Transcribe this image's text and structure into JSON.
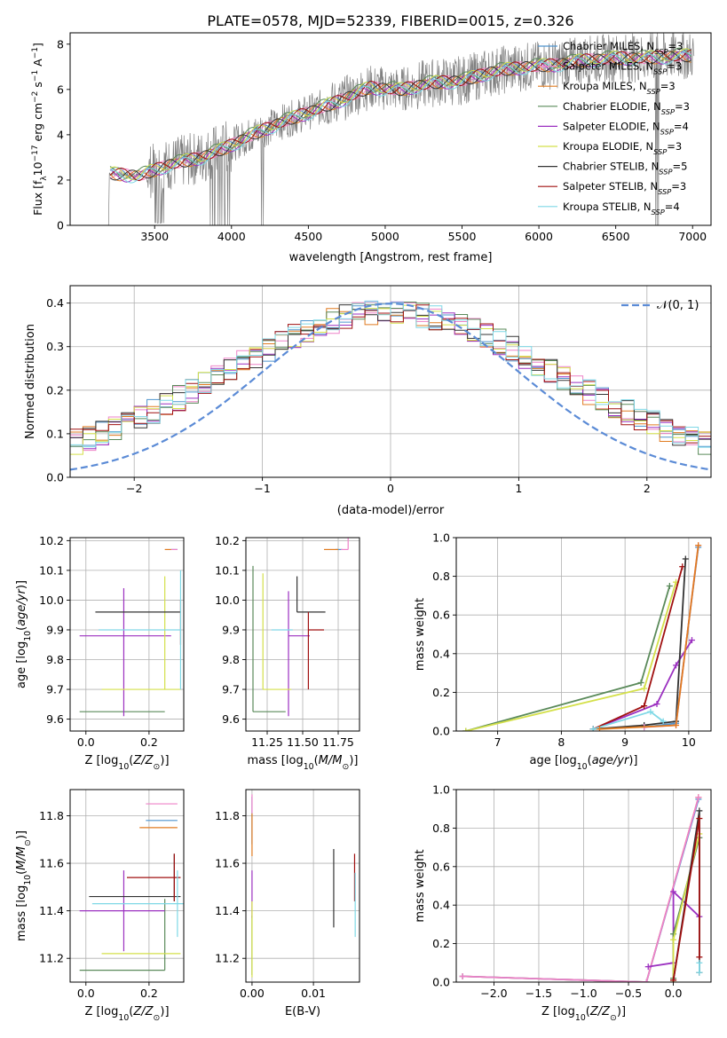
{
  "title": "PLATE=0578, MJD=52339, FIBERID=0015, z=0.326",
  "colors": {
    "data": "#808080",
    "chabrier_miles": "#4f94cd",
    "salpeter_miles": "#ee82c8",
    "kroupa_miles": "#e07b20",
    "chabrier_elodie": "#5a8a5a",
    "salpeter_elodie": "#9b30c0",
    "kroupa_elodie": "#d4e04a",
    "chabrier_stelib": "#333333",
    "salpeter_stelib": "#a01010",
    "kroupa_stelib": "#7fd8e6",
    "normal": "#5b8bd6"
  },
  "legend": [
    {
      "key": "chabrier_miles",
      "label": "Chabrier MILES, N",
      "sub": "SSP",
      "tail": "=3"
    },
    {
      "key": "salpeter_miles",
      "label": "Salpeter MILES, N",
      "sub": "SSP",
      "tail": "=3"
    },
    {
      "key": "kroupa_miles",
      "label": "Kroupa MILES, N",
      "sub": "SSP",
      "tail": "=3"
    },
    {
      "key": "chabrier_elodie",
      "label": "Chabrier ELODIE, N",
      "sub": "SSP",
      "tail": "=3"
    },
    {
      "key": "salpeter_elodie",
      "label": "Salpeter ELODIE, N",
      "sub": "SSP",
      "tail": "=4"
    },
    {
      "key": "kroupa_elodie",
      "label": "Kroupa ELODIE, N",
      "sub": "SSP",
      "tail": "=3"
    },
    {
      "key": "chabrier_stelib",
      "label": "Chabrier STELIB, N",
      "sub": "SSP",
      "tail": "=5"
    },
    {
      "key": "salpeter_stelib",
      "label": "Salpeter STELIB, N",
      "sub": "SSP",
      "tail": "=3"
    },
    {
      "key": "kroupa_stelib",
      "label": "Kroupa STELIB, N",
      "sub": "SSP",
      "tail": "=4"
    }
  ],
  "chart_data": [
    {
      "id": "spectrum",
      "type": "line",
      "xlabel": "wavelength [Angstrom, rest frame]",
      "ylabel": "Flux [f",
      "xlim": [
        2950,
        7120
      ],
      "ylim": [
        0,
        8.5
      ],
      "xticks": [
        3500,
        4000,
        4500,
        5000,
        5500,
        6000,
        6500,
        7000
      ],
      "yticks": [
        0,
        2,
        4,
        6,
        8
      ],
      "continuum": [
        [
          3200,
          2.3
        ],
        [
          3400,
          2.2
        ],
        [
          3600,
          2.7
        ],
        [
          3800,
          3.0
        ],
        [
          3950,
          3.4
        ],
        [
          4100,
          3.9
        ],
        [
          4300,
          4.5
        ],
        [
          4500,
          5.0
        ],
        [
          4700,
          5.5
        ],
        [
          4900,
          6.1
        ],
        [
          5100,
          6.0
        ],
        [
          5300,
          6.3
        ],
        [
          5500,
          6.4
        ],
        [
          5700,
          6.8
        ],
        [
          5900,
          7.0
        ],
        [
          6100,
          7.1
        ],
        [
          6300,
          7.3
        ],
        [
          6500,
          7.4
        ],
        [
          6700,
          7.4
        ],
        [
          6900,
          7.5
        ],
        [
          7000,
          7.5
        ]
      ]
    },
    {
      "id": "residuals",
      "type": "histogram",
      "xlabel": "(data-model)/error",
      "ylabel": "Normed distribution",
      "xlim": [
        -2.5,
        2.5
      ],
      "ylim": [
        0,
        0.44
      ],
      "xticks": [
        -2,
        -1,
        0,
        1,
        2
      ],
      "yticks": [
        0.0,
        0.1,
        0.2,
        0.3,
        0.4
      ],
      "normal_label": "𝒩(0, 1)",
      "bin_width": 0.1
    },
    {
      "id": "age_vs_Z",
      "type": "errorbar",
      "xlabel": "Z [log",
      "ylabel": "age  [log",
      "xlim": [
        -0.05,
        0.31
      ],
      "ylim": [
        9.56,
        10.21
      ],
      "xticks": [
        0.0,
        0.2
      ],
      "yticks": [
        9.6,
        9.7,
        9.8,
        9.9,
        10.0,
        10.1,
        10.2
      ],
      "points": [
        {
          "key": "chabrier_miles",
          "x": 0.29,
          "y": 10.17,
          "xerr": [
            0.02,
            0.0
          ],
          "yerr": [
            0.0,
            0.0
          ]
        },
        {
          "key": "salpeter_miles",
          "x": 0.29,
          "y": 10.17,
          "xerr": [
            0.02,
            0.0
          ],
          "yerr": [
            0.0,
            0.0
          ]
        },
        {
          "key": "kroupa_miles",
          "x": 0.27,
          "y": 10.17,
          "xerr": [
            0.02,
            0.0
          ],
          "yerr": [
            0.0,
            0.0
          ]
        },
        {
          "key": "chabrier_elodie",
          "x": 0.25,
          "y": 9.625,
          "xerr": [
            0.27,
            0.0
          ],
          "yerr": [
            0.0,
            0.0
          ]
        },
        {
          "key": "salpeter_elodie",
          "x": 0.12,
          "y": 9.88,
          "xerr": [
            0.14,
            0.15
          ],
          "yerr": [
            0.27,
            0.16
          ]
        },
        {
          "key": "kroupa_elodie",
          "x": 0.25,
          "y": 9.7,
          "xerr": [
            0.2,
            0.05
          ],
          "yerr": [
            0.0,
            0.38
          ]
        },
        {
          "key": "chabrier_stelib",
          "x": 0.28,
          "y": 9.96,
          "xerr": [
            0.25,
            0.02
          ],
          "yerr": [
            0.0,
            0.0
          ]
        },
        {
          "key": "salpeter_stelib",
          "x": 0.3,
          "y": 9.9,
          "xerr": [
            0.0,
            0.0
          ],
          "yerr": [
            0.05,
            0.1
          ]
        },
        {
          "key": "kroupa_stelib",
          "x": 0.3,
          "y": 9.9,
          "xerr": [
            0.26,
            0.0
          ],
          "yerr": [
            0.2,
            0.2
          ]
        }
      ]
    },
    {
      "id": "age_vs_mass",
      "type": "errorbar",
      "xlabel": "mass [log",
      "ylabel": "",
      "xlim": [
        11.1,
        11.9
      ],
      "ylim": [
        9.56,
        10.21
      ],
      "xticks": [
        11.25,
        11.5,
        11.75
      ],
      "yticks": [
        9.6,
        9.7,
        9.8,
        9.9,
        10.0,
        10.1,
        10.2
      ],
      "points": [
        {
          "key": "chabrier_miles",
          "x": 11.78,
          "y": 10.17,
          "xerr": [
            0.05,
            0.0
          ],
          "yerr": [
            0.0,
            0.0
          ]
        },
        {
          "key": "salpeter_miles",
          "x": 11.82,
          "y": 10.17,
          "xerr": [
            0.05,
            0.0
          ],
          "yerr": [
            0.0,
            0.05
          ]
        },
        {
          "key": "kroupa_miles",
          "x": 11.75,
          "y": 10.17,
          "xerr": [
            0.1,
            0.0
          ],
          "yerr": [
            0.0,
            0.0
          ]
        },
        {
          "key": "chabrier_elodie",
          "x": 11.15,
          "y": 9.625,
          "xerr": [
            0.0,
            0.23
          ],
          "yerr": [
            0.0,
            0.49
          ]
        },
        {
          "key": "salpeter_elodie",
          "x": 11.4,
          "y": 9.88,
          "xerr": [
            0.0,
            0.15
          ],
          "yerr": [
            0.27,
            0.15
          ]
        },
        {
          "key": "kroupa_elodie",
          "x": 11.22,
          "y": 9.7,
          "xerr": [
            0.0,
            0.2
          ],
          "yerr": [
            0.0,
            0.39
          ]
        },
        {
          "key": "chabrier_stelib",
          "x": 11.46,
          "y": 9.96,
          "xerr": [
            0.0,
            0.2
          ],
          "yerr": [
            0.0,
            0.12
          ]
        },
        {
          "key": "salpeter_stelib",
          "x": 11.54,
          "y": 9.9,
          "xerr": [
            0.0,
            0.11
          ],
          "yerr": [
            0.2,
            0.06
          ]
        },
        {
          "key": "kroupa_stelib",
          "x": 11.43,
          "y": 9.9,
          "xerr": [
            0.15,
            0.0
          ],
          "yerr": [
            0.0,
            0.0
          ]
        }
      ]
    },
    {
      "id": "weight_vs_age",
      "type": "line",
      "xlabel": "age  [log",
      "ylabel": "mass weight",
      "xlim": [
        6.35,
        10.35
      ],
      "ylim": [
        0,
        1
      ],
      "xticks": [
        7,
        8,
        9,
        10
      ],
      "yticks": [
        0.0,
        0.2,
        0.4,
        0.6,
        0.8,
        1.0
      ],
      "series": [
        {
          "key": "chabrier_elodie",
          "x": [
            6.5,
            9.25,
            9.7
          ],
          "y": [
            0.0,
            0.25,
            0.75
          ]
        },
        {
          "key": "kroupa_elodie",
          "x": [
            6.5,
            9.3,
            9.8
          ],
          "y": [
            0.0,
            0.22,
            0.77
          ]
        },
        {
          "key": "salpeter_elodie",
          "x": [
            8.5,
            9.5,
            9.8,
            10.05
          ],
          "y": [
            0.01,
            0.14,
            0.34,
            0.47
          ]
        },
        {
          "key": "salpeter_stelib",
          "x": [
            8.5,
            9.3,
            9.9
          ],
          "y": [
            0.01,
            0.13,
            0.85
          ]
        },
        {
          "key": "chabrier_stelib",
          "x": [
            8.5,
            9.3,
            9.8,
            9.95
          ],
          "y": [
            0.01,
            0.03,
            0.05,
            0.89
          ]
        },
        {
          "key": "kroupa_stelib",
          "x": [
            8.5,
            9.4,
            9.6
          ],
          "y": [
            0.01,
            0.1,
            0.05
          ]
        },
        {
          "key": "chabrier_miles",
          "x": [
            9.3,
            9.8,
            10.15
          ],
          "y": [
            0.02,
            0.04,
            0.95
          ]
        },
        {
          "key": "salpeter_miles",
          "x": [
            9.3,
            9.8,
            10.15
          ],
          "y": [
            0.02,
            0.03,
            0.96
          ]
        },
        {
          "key": "kroupa_miles",
          "x": [
            8.6,
            9.8,
            10.15
          ],
          "y": [
            0.01,
            0.03,
            0.96
          ]
        }
      ]
    },
    {
      "id": "mass_vs_Z",
      "type": "errorbar",
      "xlabel": "Z [log",
      "ylabel": "mass [log",
      "xlim": [
        -0.05,
        0.31
      ],
      "ylim": [
        11.1,
        11.91
      ],
      "xticks": [
        0.0,
        0.2
      ],
      "yticks": [
        11.2,
        11.4,
        11.6,
        11.8
      ],
      "points": [
        {
          "key": "chabrier_miles",
          "x": 0.29,
          "y": 11.78,
          "xerr": [
            0.1,
            0.0
          ],
          "yerr": [
            0.0,
            0.0
          ]
        },
        {
          "key": "salpeter_miles",
          "x": 0.29,
          "y": 11.85,
          "xerr": [
            0.1,
            0.0
          ],
          "yerr": [
            0.0,
            0.0
          ]
        },
        {
          "key": "kroupa_miles",
          "x": 0.27,
          "y": 11.75,
          "xerr": [
            0.1,
            0.02
          ],
          "yerr": [
            0.0,
            0.0
          ]
        },
        {
          "key": "chabrier_elodie",
          "x": 0.25,
          "y": 11.15,
          "xerr": [
            0.27,
            0.0
          ],
          "yerr": [
            0.0,
            0.3
          ]
        },
        {
          "key": "salpeter_elodie",
          "x": 0.12,
          "y": 11.4,
          "xerr": [
            0.14,
            0.13
          ],
          "yerr": [
            0.17,
            0.17
          ]
        },
        {
          "key": "kroupa_elodie",
          "x": 0.25,
          "y": 11.22,
          "xerr": [
            0.2,
            0.05
          ],
          "yerr": [
            0.0,
            0.0
          ]
        },
        {
          "key": "chabrier_stelib",
          "x": 0.28,
          "y": 11.46,
          "xerr": [
            0.27,
            0.02
          ],
          "yerr": [
            0.02,
            0.18
          ]
        },
        {
          "key": "salpeter_stelib",
          "x": 0.28,
          "y": 11.54,
          "xerr": [
            0.15,
            0.02
          ],
          "yerr": [
            0.1,
            0.1
          ]
        },
        {
          "key": "kroupa_stelib",
          "x": 0.29,
          "y": 11.43,
          "xerr": [
            0.27,
            0.02
          ],
          "yerr": [
            0.14,
            0.14
          ]
        }
      ]
    },
    {
      "id": "mass_vs_EBV",
      "type": "errorbar",
      "xlabel": "E(B-V)",
      "ylabel": "",
      "xlim": [
        -0.001,
        0.0175
      ],
      "ylim": [
        11.1,
        11.91
      ],
      "xticks": [
        0.0,
        0.01
      ],
      "yticks": [
        11.2,
        11.4,
        11.6,
        11.8
      ],
      "points": [
        {
          "key": "chabrier_miles",
          "x": 0.0,
          "y": 11.78,
          "xerr": [
            0,
            0
          ],
          "yerr": [
            0.1,
            0.1
          ]
        },
        {
          "key": "salpeter_miles",
          "x": 0.0,
          "y": 11.85,
          "xerr": [
            0,
            0
          ],
          "yerr": [
            0.04,
            0.04
          ]
        },
        {
          "key": "kroupa_miles",
          "x": 0.0,
          "y": 11.75,
          "xerr": [
            0,
            0
          ],
          "yerr": [
            0.12,
            0.06
          ]
        },
        {
          "key": "chabrier_elodie",
          "x": 0.0,
          "y": 11.18,
          "xerr": [
            0,
            0
          ],
          "yerr": [
            0.05,
            0.2
          ]
        },
        {
          "key": "salpeter_elodie",
          "x": 0.0,
          "y": 11.45,
          "xerr": [
            0,
            0
          ],
          "yerr": [
            0.08,
            0.12
          ]
        },
        {
          "key": "kroupa_elodie",
          "x": 0.0,
          "y": 11.3,
          "xerr": [
            0,
            0
          ],
          "yerr": [
            0.18,
            0.14
          ]
        },
        {
          "key": "chabrier_stelib",
          "x": 0.0133,
          "y": 11.5,
          "xerr": [
            0,
            0
          ],
          "yerr": [
            0.17,
            0.16
          ]
        },
        {
          "key": "salpeter_stelib",
          "x": 0.0167,
          "y": 11.54,
          "xerr": [
            0,
            0
          ],
          "yerr": [
            0.1,
            0.1
          ]
        },
        {
          "key": "kroupa_stelib",
          "x": 0.0168,
          "y": 11.43,
          "xerr": [
            0,
            0
          ],
          "yerr": [
            0.14,
            0.13
          ]
        }
      ]
    },
    {
      "id": "weight_vs_Z",
      "type": "line",
      "xlabel": "Z [log",
      "ylabel": "mass weight",
      "xlim": [
        -2.42,
        0.42
      ],
      "ylim": [
        0,
        1
      ],
      "xticks": [
        -2.0,
        -1.5,
        -1.0,
        -0.5,
        0.0
      ],
      "yticks": [
        0.0,
        0.2,
        0.4,
        0.6,
        0.8,
        1.0
      ],
      "series": [
        {
          "key": "kroupa_miles",
          "x": [
            -2.35,
            -0.3,
            0.28
          ],
          "y": [
            0.03,
            0.0,
            0.96
          ]
        },
        {
          "key": "chabrier_miles",
          "x": [
            -2.35,
            -0.3,
            0.28
          ],
          "y": [
            0.03,
            0.0,
            0.95
          ]
        },
        {
          "key": "salpeter_miles",
          "x": [
            -2.35,
            -0.3,
            0.28
          ],
          "y": [
            0.03,
            0.0,
            0.96
          ]
        },
        {
          "key": "salpeter_elodie",
          "x": [
            -0.28,
            0.0,
            0.0,
            0.29
          ],
          "y": [
            0.08,
            0.1,
            0.47,
            0.34
          ]
        },
        {
          "key": "chabrier_elodie",
          "x": [
            0.0,
            0.0,
            0.29
          ],
          "y": [
            0.02,
            0.25,
            0.75
          ]
        },
        {
          "key": "kroupa_elodie",
          "x": [
            0.0,
            0.0,
            0.29
          ],
          "y": [
            0.0,
            0.22,
            0.77
          ]
        },
        {
          "key": "chabrier_stelib",
          "x": [
            0.0,
            0.29,
            0.29
          ],
          "y": [
            0.01,
            0.89,
            0.05
          ]
        },
        {
          "key": "salpeter_stelib",
          "x": [
            0.0,
            0.29,
            0.29
          ],
          "y": [
            0.01,
            0.85,
            0.13
          ]
        },
        {
          "key": "kroupa_stelib",
          "x": [
            0.29,
            0.29
          ],
          "y": [
            0.1,
            0.05
          ]
        }
      ]
    }
  ]
}
